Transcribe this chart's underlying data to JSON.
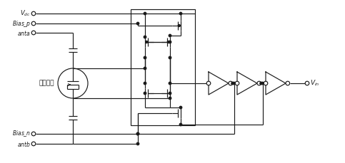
{
  "bg_color": "#ffffff",
  "line_color": "#1a1a1a",
  "figsize": [
    4.83,
    2.29
  ],
  "dpi": 100,
  "labels": {
    "vdc": "$V_{dc}$",
    "bias_p": "$Bias\\_p$",
    "anta": "$anta$",
    "bias_n": "$Bias\\_n$",
    "antb": "$antb$",
    "cap_label": "可变电容",
    "vin": "$V_{in}$"
  }
}
